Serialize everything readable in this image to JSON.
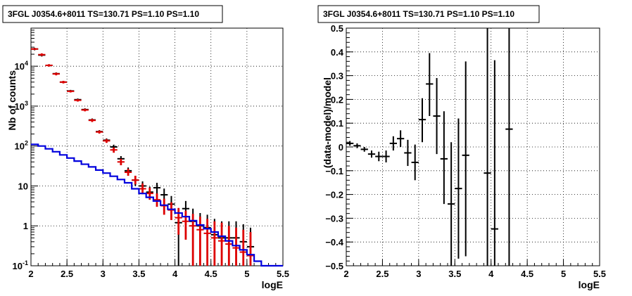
{
  "chart_data": [
    {
      "type": "line",
      "title": "3FGL J0354.6+8011 TS=130.71 PS=1.10 PS=1.10",
      "xlabel": "logE",
      "ylabel": "Nb of counts",
      "xlim": [
        2,
        5.5
      ],
      "ylim": [
        0.1,
        90000
      ],
      "yscale": "log",
      "grid": true,
      "x_ticks": [
        "2",
        "2.5",
        "3",
        "3.5",
        "4",
        "4.5",
        "5",
        "5.5"
      ],
      "y_ticks": [
        "10^-1",
        "1",
        "10",
        "10^2",
        "10^3",
        "10^4"
      ],
      "series": [
        {
          "color": "#000000",
          "x": [
            2.05,
            2.15,
            2.25,
            2.35,
            2.45,
            2.55,
            2.65,
            2.75,
            2.85,
            2.95,
            3.05,
            3.15,
            3.25,
            3.35,
            3.45,
            3.55,
            3.65,
            3.75,
            3.85,
            3.95,
            4.05,
            4.15,
            4.25,
            4.35,
            4.45,
            4.55,
            4.65,
            4.75,
            4.85,
            4.95,
            5.05
          ],
          "y": [
            27000,
            19000,
            10500,
            6500,
            4000,
            2400,
            1450,
            820,
            450,
            230,
            140,
            95,
            48,
            24,
            14,
            10,
            7,
            9,
            6,
            3.5,
            1.2,
            2.7,
            1.3,
            1.0,
            0.9,
            0.6,
            0.5,
            0.5,
            0.5,
            0.4,
            0.3
          ],
          "ylow": [
            25000,
            17500,
            9800,
            6000,
            3800,
            2250,
            1350,
            760,
            410,
            210,
            125,
            82,
            40,
            19,
            10,
            7,
            4.8,
            6.2,
            3.8,
            1.8,
            0.1,
            1.6,
            0.1,
            0.1,
            0.1,
            0.1,
            0.1,
            0.1,
            0.1,
            0.1,
            0.1
          ],
          "yhigh": [
            29000,
            20500,
            11200,
            7000,
            4200,
            2550,
            1550,
            880,
            490,
            250,
            155,
            108,
            56,
            29,
            18,
            13,
            9.6,
            12,
            8.6,
            5.6,
            2.8,
            4.2,
            2.7,
            2.1,
            1.9,
            1.5,
            1.3,
            1.3,
            1.3,
            1.1,
            0.9
          ]
        },
        {
          "color": "#dd0000",
          "x": [
            2.05,
            2.15,
            2.25,
            2.35,
            2.45,
            2.55,
            2.65,
            2.75,
            2.85,
            2.95,
            3.05,
            3.15,
            3.25,
            3.35,
            3.45,
            3.55,
            3.65,
            3.75,
            3.85,
            3.95,
            4.05,
            4.15,
            4.25,
            4.35,
            4.45,
            4.55,
            4.65,
            4.75,
            4.85,
            4.95,
            5.05
          ],
          "y": [
            27000,
            19500,
            10500,
            6400,
            4000,
            2350,
            1400,
            800,
            440,
            225,
            135,
            80,
            40,
            22,
            14,
            8.5,
            6.5,
            4.5,
            3.2,
            2.5,
            1.6,
            1.3,
            1.0,
            0.8,
            0.65,
            0.5,
            0.42,
            0.35,
            0.28,
            0.22,
            0.18
          ],
          "ylow": [
            25500,
            18000,
            9800,
            5900,
            3700,
            2200,
            1300,
            740,
            400,
            205,
            120,
            68,
            33,
            18,
            11,
            6.2,
            4.5,
            3.0,
            1.9,
            1.4,
            0.6,
            0.45,
            0.1,
            0.1,
            0.1,
            0.1,
            0.1,
            0.1,
            0.1,
            0.1,
            0.1
          ],
          "yhigh": [
            28500,
            21000,
            11200,
            6900,
            4300,
            2500,
            1500,
            860,
            480,
            245,
            150,
            92,
            48,
            27,
            18,
            11.5,
            9,
            6.5,
            4.8,
            3.9,
            2.8,
            2.4,
            2.0,
            1.7,
            1.5,
            1.3,
            1.2,
            1.0,
            0.9,
            0.8,
            0.7
          ]
        },
        {
          "color": "#0000dd",
          "step": true,
          "edges": [
            2.0,
            2.1,
            2.2,
            2.3,
            2.4,
            2.5,
            2.6,
            2.7,
            2.8,
            2.9,
            3.0,
            3.1,
            3.2,
            3.3,
            3.4,
            3.5,
            3.6,
            3.7,
            3.8,
            3.9,
            4.0,
            4.1,
            4.2,
            4.3,
            4.4,
            4.5,
            4.6,
            4.7,
            4.8,
            4.9,
            5.0,
            5.1,
            5.2,
            5.5
          ],
          "y": [
            110,
            100,
            85,
            72,
            60,
            50,
            42,
            35,
            30,
            25,
            21,
            17.5,
            14.5,
            12,
            8.5,
            6.5,
            5.2,
            4.2,
            3.3,
            2.6,
            2.1,
            1.7,
            1.35,
            1.05,
            0.85,
            0.7,
            0.55,
            0.42,
            0.32,
            0.25,
            0.19,
            0.13,
            0.1
          ]
        }
      ]
    },
    {
      "type": "scatter",
      "title": "3FGL J0354.6+8011 TS=130.71 PS=1.10 PS=1.10",
      "xlabel": "logE",
      "ylabel": "(data-model)/model",
      "xlim": [
        2,
        5.5
      ],
      "ylim": [
        -0.5,
        0.5
      ],
      "grid": true,
      "x_ticks": [
        "2",
        "2.5",
        "3",
        "3.5",
        "4",
        "4.5",
        "5",
        "5.5"
      ],
      "y_ticks": [
        "−0.5",
        "−0.4",
        "−0.3",
        "−0.2",
        "−0.1",
        "0",
        "0.1",
        "0.2",
        "0.3",
        "0.4",
        "0.5"
      ],
      "series": [
        {
          "color": "#000000",
          "x": [
            2.05,
            2.15,
            2.25,
            2.35,
            2.45,
            2.55,
            2.65,
            2.75,
            2.85,
            2.95,
            3.05,
            3.15,
            3.25,
            3.35,
            3.45,
            3.55,
            3.65,
            3.95,
            4.05,
            4.25
          ],
          "y": [
            0.015,
            0.005,
            -0.01,
            -0.03,
            -0.04,
            -0.04,
            0.015,
            0.035,
            -0.025,
            -0.065,
            0.115,
            0.265,
            0.13,
            -0.05,
            -0.24,
            -0.175,
            -0.035,
            -0.11,
            -0.345,
            0.075
          ],
          "ylow": [
            0.005,
            -0.005,
            -0.02,
            -0.045,
            -0.06,
            -0.065,
            -0.015,
            0.0,
            -0.08,
            -0.14,
            0.02,
            0.13,
            -0.03,
            -0.24,
            -0.5,
            -0.47,
            -0.46,
            -0.5,
            -0.5,
            -0.5
          ],
          "yhigh": [
            0.025,
            0.015,
            0.0,
            -0.015,
            -0.02,
            -0.015,
            0.045,
            0.07,
            0.03,
            0.01,
            0.205,
            0.395,
            0.29,
            0.15,
            0.02,
            0.12,
            0.36,
            0.5,
            0.365,
            0.5
          ]
        }
      ]
    }
  ]
}
